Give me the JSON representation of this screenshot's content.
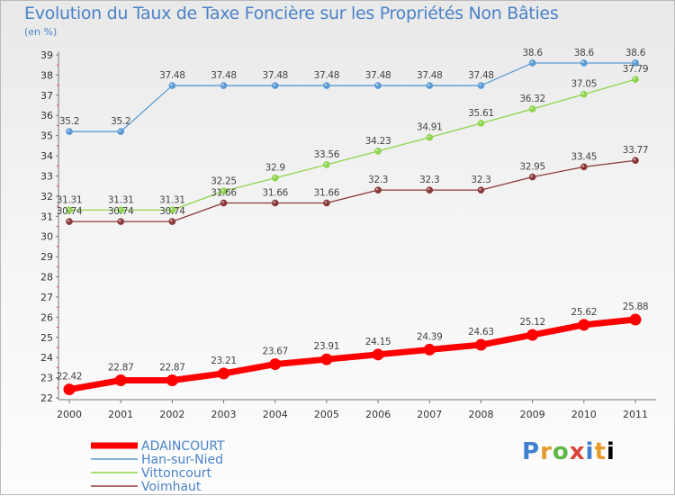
{
  "title": "Evolution du Taux de Taxe Foncière sur les Propriétés Non Bâties",
  "subtitle": "(en %)",
  "logo_text": "Proxiti",
  "chart_data": {
    "type": "line",
    "title": "Evolution du Taux de Taxe Foncière sur les Propriétés Non Bâties",
    "ylabel": "(en %)",
    "xlabel": "",
    "categories": [
      "2000",
      "2001",
      "2002",
      "2003",
      "2004",
      "2005",
      "2006",
      "2007",
      "2008",
      "2009",
      "2010",
      "2011"
    ],
    "ylim": [
      22,
      39
    ],
    "yticks": [
      "22",
      "23",
      "24",
      "25",
      "26",
      "27",
      "28",
      "29",
      "30",
      "31",
      "32",
      "33",
      "34",
      "35",
      "36",
      "37",
      "38",
      "39"
    ],
    "grid": false,
    "legend_position": "bottom-left",
    "series": [
      {
        "name": "ADAINCOURT",
        "color": "#ff0000",
        "values": [
          22.42,
          22.87,
          22.87,
          23.21,
          23.67,
          23.91,
          24.15,
          24.39,
          24.63,
          25.12,
          25.62,
          25.88
        ],
        "labels": [
          "22.42",
          "22.87",
          "22.87",
          "23.21",
          "23.67",
          "23.91",
          "24.15",
          "24.39",
          "24.63",
          "25.12",
          "25.62",
          "25.88"
        ]
      },
      {
        "name": "Han-sur-Nied",
        "color": "#5b9bd5",
        "values": [
          35.2,
          35.2,
          37.48,
          37.48,
          37.48,
          37.48,
          37.48,
          37.48,
          37.48,
          38.6,
          38.6,
          38.6
        ],
        "labels": [
          "35.2",
          "35.2",
          "37.48",
          "37.48",
          "37.48",
          "37.48",
          "37.48",
          "37.48",
          "37.48",
          "38.6",
          "38.6",
          "38.6"
        ]
      },
      {
        "name": "Vittoncourt",
        "color": "#8fd44d",
        "values": [
          31.31,
          31.31,
          31.31,
          32.25,
          32.9,
          33.56,
          34.23,
          34.91,
          35.61,
          36.32,
          37.05,
          37.79
        ],
        "labels": [
          "31.31",
          "31.31",
          "31.31",
          "32.25",
          "32.9",
          "33.56",
          "34.23",
          "34.91",
          "35.61",
          "36.32",
          "37.05",
          "37.79"
        ]
      },
      {
        "name": "Voimhaut",
        "color": "#8b3a3a",
        "values": [
          30.74,
          30.74,
          30.74,
          31.66,
          31.66,
          31.66,
          32.3,
          32.3,
          32.3,
          32.95,
          33.45,
          33.77
        ],
        "labels": [
          "30.74",
          "30.74",
          "30.74",
          "31.66",
          "31.66",
          "31.66",
          "32.3",
          "32.3",
          "32.3",
          "32.95",
          "33.45",
          "33.77"
        ]
      }
    ]
  }
}
